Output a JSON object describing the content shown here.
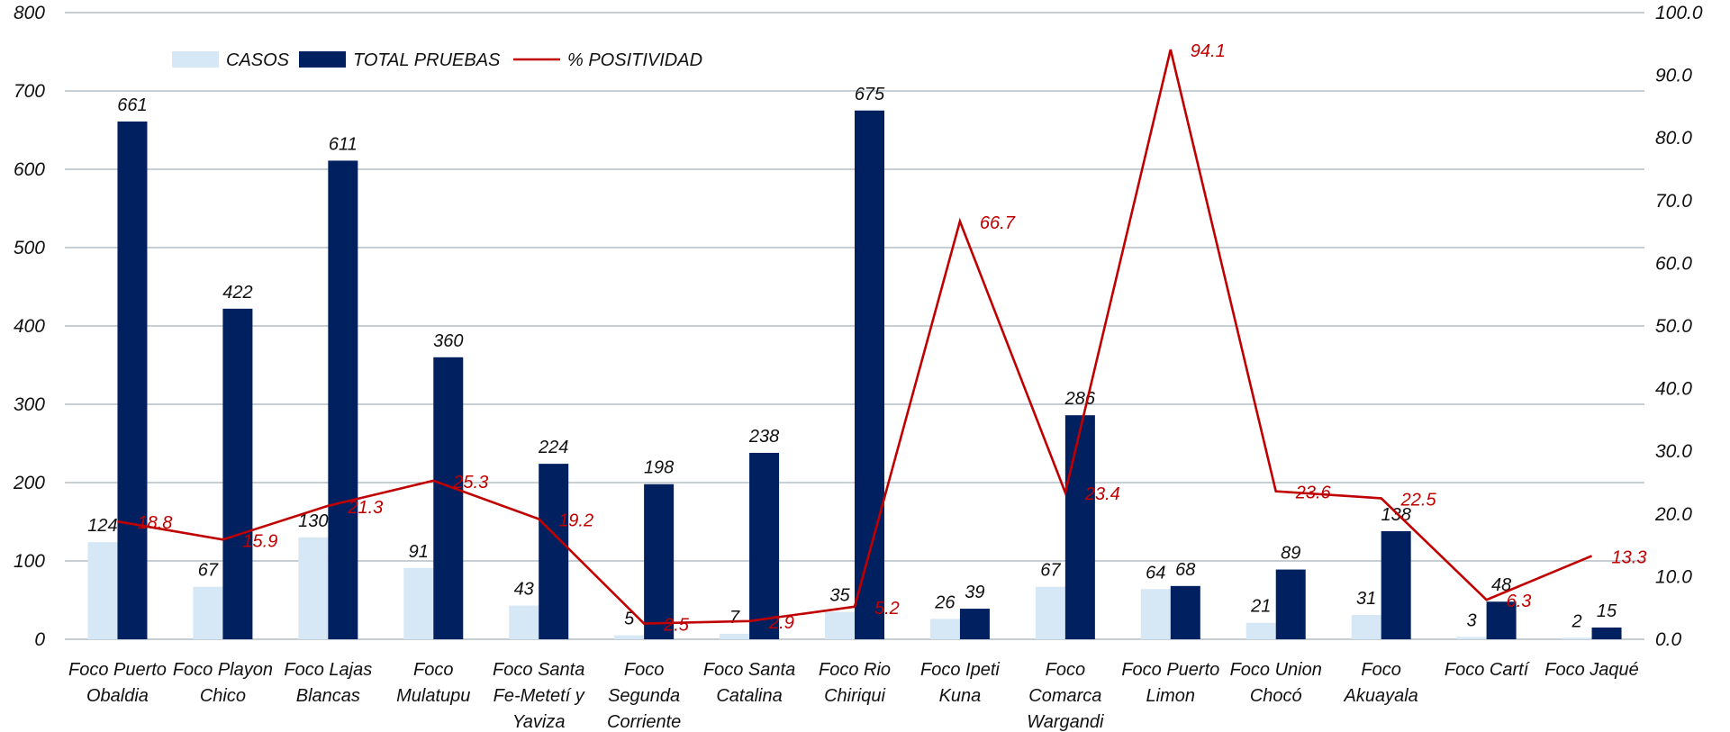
{
  "chart_data": {
    "type": "bar",
    "categories": [
      [
        "Foco Puerto",
        "Obaldia"
      ],
      [
        "Foco Playon",
        "Chico"
      ],
      [
        "Foco Lajas",
        "Blancas"
      ],
      [
        "Foco",
        "Mulatupu"
      ],
      [
        "Foco Santa",
        "Fe-Metetí y",
        "Yaviza"
      ],
      [
        "Foco",
        "Segunda",
        "Corriente"
      ],
      [
        "Foco Santa",
        "Catalina"
      ],
      [
        "Foco Rio",
        "Chiriqui"
      ],
      [
        "Foco Ipeti",
        "Kuna"
      ],
      [
        "Foco",
        "Comarca",
        "Wargandi"
      ],
      [
        "Foco Puerto",
        "Limon"
      ],
      [
        "Foco Union",
        "Chocó"
      ],
      [
        "Foco",
        "Akuayala"
      ],
      [
        "Foco Cartí"
      ],
      [
        "Foco Jaqué"
      ]
    ],
    "series": [
      {
        "name": "CASOS",
        "kind": "bar",
        "axis": "left",
        "color": "#d6e7f5",
        "values": [
          124,
          67,
          130,
          91,
          43,
          5,
          7,
          35,
          26,
          67,
          64,
          21,
          31,
          3,
          2
        ]
      },
      {
        "name": "TOTAL PRUEBAS",
        "kind": "bar",
        "axis": "left",
        "color": "#002060",
        "values": [
          661,
          422,
          611,
          360,
          224,
          198,
          238,
          675,
          39,
          286,
          68,
          89,
          138,
          48,
          15
        ]
      },
      {
        "name": "% POSITIVIDAD",
        "kind": "line",
        "axis": "right",
        "color": "#c00000",
        "values": [
          18.8,
          15.9,
          21.3,
          25.3,
          19.2,
          2.5,
          2.9,
          5.2,
          66.7,
          23.4,
          94.1,
          23.6,
          22.5,
          6.3,
          13.3
        ]
      }
    ],
    "y_left": {
      "min": 0,
      "max": 800,
      "step": 100,
      "tick_labels": [
        "0",
        "100",
        "200",
        "300",
        "400",
        "500",
        "600",
        "700",
        "800"
      ]
    },
    "y_right": {
      "min": 0,
      "max": 100,
      "step": 10,
      "tick_labels": [
        "0.0",
        "10.0",
        "20.0",
        "30.0",
        "40.0",
        "50.0",
        "60.0",
        "70.0",
        "80.0",
        "90.0",
        "100.0"
      ]
    },
    "grid": true,
    "legend_position": "top-left",
    "title": "",
    "xlabel": "",
    "ylabel": ""
  }
}
